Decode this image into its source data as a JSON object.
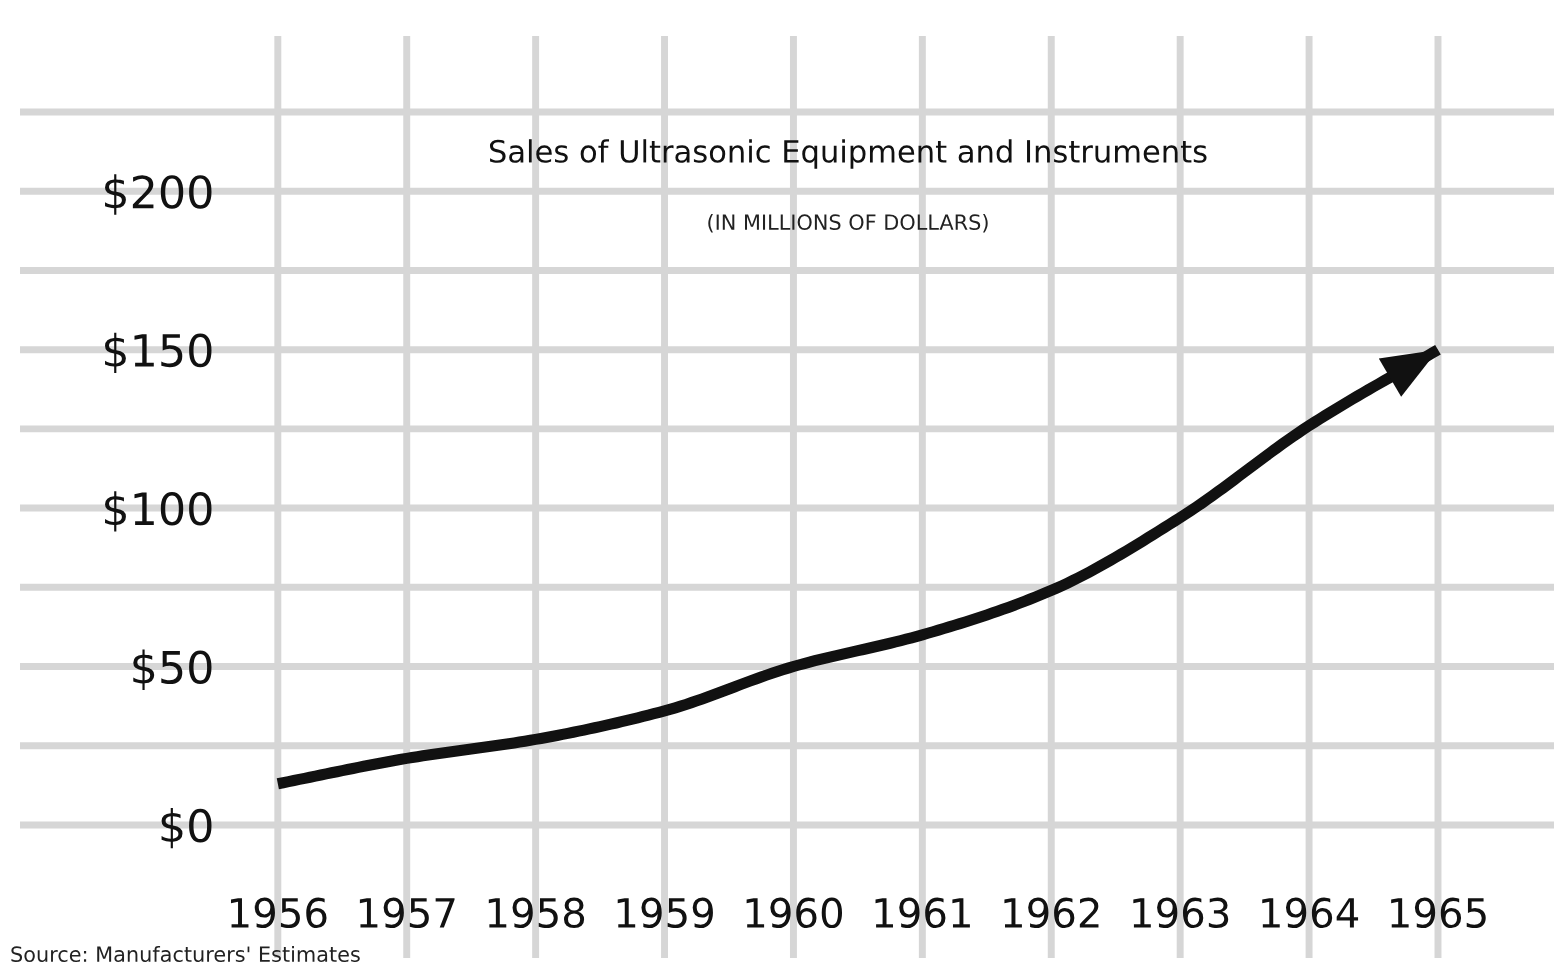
{
  "chart_data": {
    "type": "line",
    "title": "Sales of Ultrasonic Equipment and Instruments",
    "subtitle": "(IN MILLIONS OF DOLLARS)",
    "annotations": [
      "Source: Manufacturers' Estimates"
    ],
    "x": [
      1956,
      1957,
      1958,
      1959,
      1960,
      1961,
      1962,
      1963,
      1964,
      1965
    ],
    "series": [
      {
        "color": "#111111",
        "values": [
          13,
          21,
          27,
          36,
          50,
          60,
          74,
          97,
          126,
          150
        ]
      }
    ],
    "xlim": [
      1954,
      1965.9
    ],
    "xticks": [
      1956,
      1957,
      1958,
      1959,
      1960,
      1961,
      1962,
      1963,
      1964,
      1965
    ],
    "ylim": [
      -42,
      249
    ],
    "yticks": [
      {
        "value": 0,
        "label": "$0"
      },
      {
        "value": 25,
        "label": null
      },
      {
        "value": 50,
        "label": "$50"
      },
      {
        "value": 75,
        "label": null
      },
      {
        "value": 100,
        "label": "$100"
      },
      {
        "value": 125,
        "label": null
      },
      {
        "value": 150,
        "label": "$150"
      },
      {
        "value": 175,
        "label": null
      },
      {
        "value": 200,
        "label": "$200"
      },
      {
        "value": 225,
        "label": null
      }
    ],
    "grid": true,
    "line_style": "solid"
  }
}
